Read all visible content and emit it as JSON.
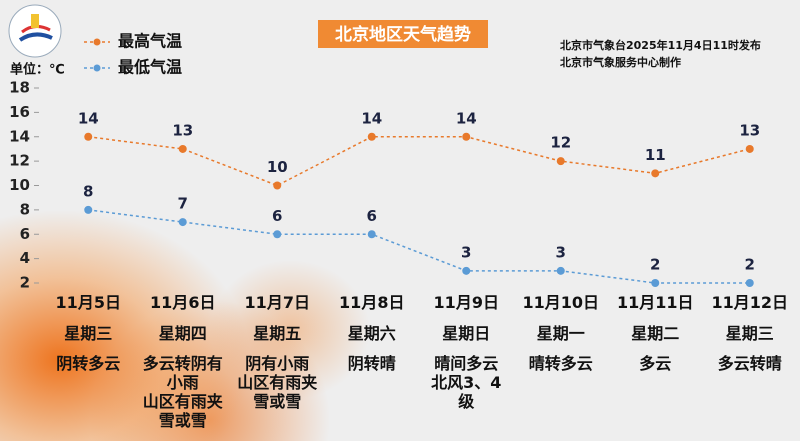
{
  "header": {
    "title": "北京地区天气趋势",
    "publisher": "北京市气象台2025年11月4日11时发布",
    "maker": "北京市气象服务中心制作",
    "unit": "单位：℃"
  },
  "chart_data": {
    "type": "line",
    "categories": [
      "11月5日",
      "11月6日",
      "11月7日",
      "11月8日",
      "11月9日",
      "11月10日",
      "11月11日",
      "11月12日"
    ],
    "weekdays": [
      "星期三",
      "星期四",
      "星期五",
      "星期六",
      "星期日",
      "星期一",
      "星期二",
      "星期三"
    ],
    "weather": [
      [
        "阴转多云"
      ],
      [
        "多云转阴有小雨",
        "山区有雨夹雪或雪"
      ],
      [
        "阴有小雨",
        "山区有雨夹雪或雪"
      ],
      [
        "阴转晴"
      ],
      [
        "晴间多云",
        "北风3、4级"
      ],
      [
        "晴转多云"
      ],
      [
        "多云"
      ],
      [
        "多云转晴"
      ]
    ],
    "series": [
      {
        "name": "最高气温",
        "color": "#e8792b",
        "values": [
          14,
          13,
          10,
          14,
          14,
          12,
          11,
          13
        ]
      },
      {
        "name": "最低气温",
        "color": "#5b9bd5",
        "values": [
          8,
          7,
          6,
          6,
          3,
          3,
          2,
          2
        ]
      }
    ],
    "ylim": [
      2,
      18
    ],
    "yticks": [
      2,
      4,
      6,
      8,
      10,
      12,
      14,
      16,
      18
    ]
  }
}
